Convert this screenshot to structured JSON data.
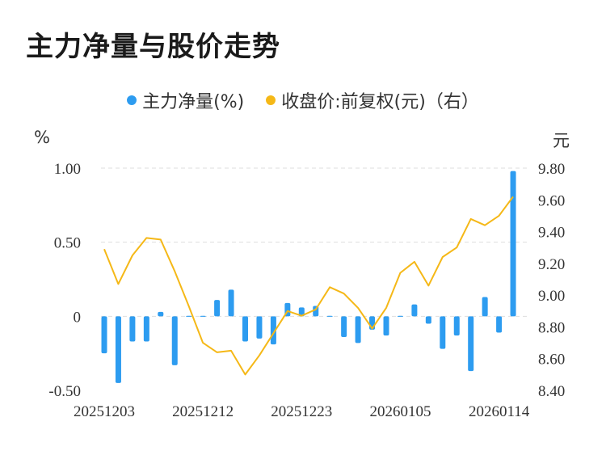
{
  "title": "主力净量与股价走势",
  "colors": {
    "bar": "#2d9cf0",
    "line": "#f5b817",
    "grid": "#dddddd"
  },
  "chart_data": {
    "type": "bar",
    "legend": [
      {
        "label": "主力净量(%)",
        "color": "#2d9cf0"
      },
      {
        "label": "收盘价:前复权(元)（右）",
        "color": "#f5b817"
      }
    ],
    "left_unit": "%",
    "right_unit": "元",
    "y_left": {
      "range": [
        -0.5,
        1.0
      ],
      "ticks": [
        1.0,
        0.5,
        0,
        -0.5
      ],
      "tick_labels": [
        "1.00",
        "0.50",
        "0",
        "-0.50"
      ]
    },
    "y_right": {
      "range": [
        8.4,
        9.8
      ],
      "ticks": [
        9.8,
        9.6,
        9.4,
        9.2,
        9.0,
        8.8,
        8.6,
        8.4
      ],
      "tick_labels": [
        "9.80",
        "9.60",
        "9.40",
        "9.20",
        "9.00",
        "8.80",
        "8.60",
        "8.40"
      ]
    },
    "x_tick_labels": [
      "20251203",
      "20251212",
      "20251223",
      "20260105",
      "20260114"
    ],
    "x_tick_indices": [
      0,
      7,
      14,
      21,
      28
    ],
    "series": [
      {
        "name": "主力净量(%)",
        "type": "bar",
        "values": [
          -0.25,
          -0.45,
          -0.17,
          -0.17,
          0.03,
          -0.33,
          0.005,
          0.005,
          0.11,
          0.18,
          -0.17,
          -0.15,
          -0.19,
          0.09,
          0.06,
          0.07,
          0.005,
          -0.14,
          -0.18,
          -0.09,
          -0.13,
          0.003,
          0.08,
          -0.05,
          -0.22,
          -0.13,
          -0.37,
          0.13,
          -0.11,
          0.98
        ]
      },
      {
        "name": "收盘价:前复权(元)（右）",
        "type": "line",
        "values": [
          9.29,
          9.07,
          9.25,
          9.36,
          9.35,
          9.15,
          8.93,
          8.7,
          8.64,
          8.65,
          8.5,
          8.62,
          8.76,
          8.9,
          8.87,
          8.91,
          9.05,
          9.01,
          8.92,
          8.79,
          8.92,
          9.14,
          9.21,
          9.06,
          9.24,
          9.3,
          9.48,
          9.44,
          9.5,
          9.62
        ]
      }
    ]
  }
}
